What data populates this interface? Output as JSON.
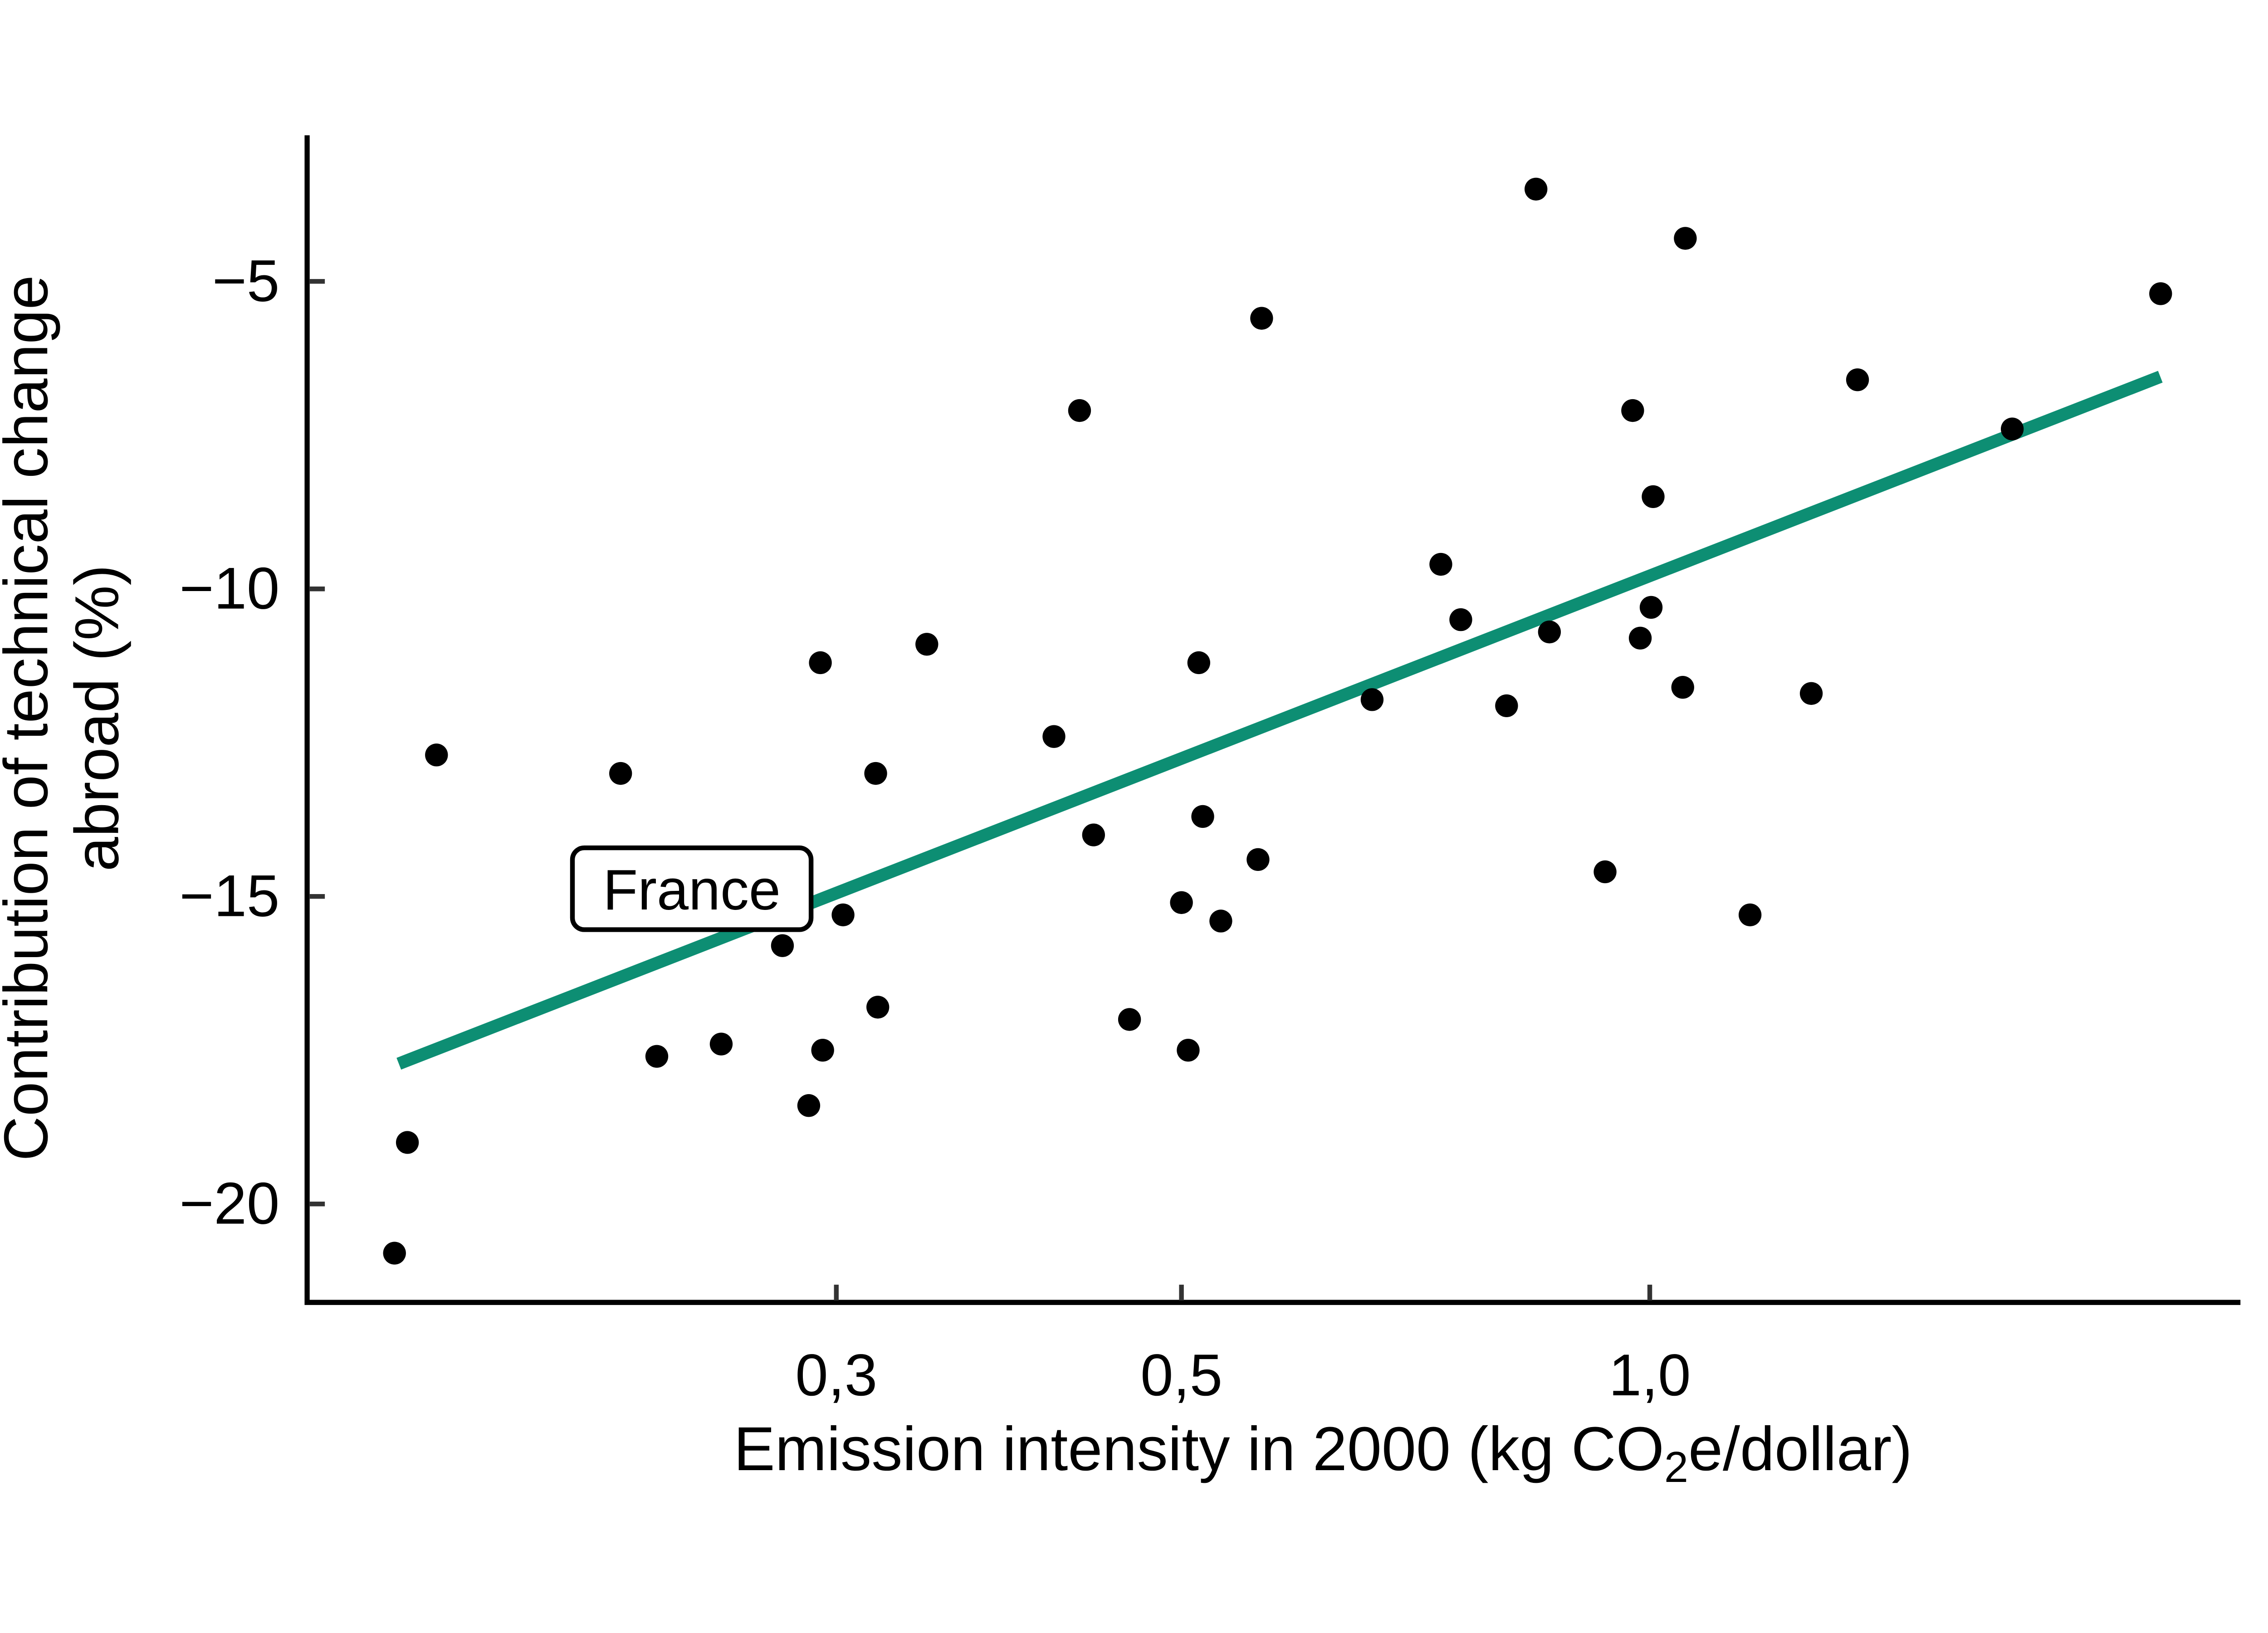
{
  "chart_data": {
    "type": "scatter",
    "title": "",
    "xlabel_prefix": "Emission intensity in 2000 (kg CO",
    "xlabel_subscript": "2",
    "xlabel_suffix": "e/dollar)",
    "ylabel_line1": "Contribution of technical change",
    "ylabel_line2": "abroad (%)",
    "x_scale": "log",
    "y_scale": "linear",
    "x_axis_range": [
      0.137,
      2.4
    ],
    "y_axis_range": [
      -21.6,
      -2.6
    ],
    "grid": false,
    "legend": "none",
    "x_ticks": [
      {
        "value": 0.3,
        "label": "0,3"
      },
      {
        "value": 0.5,
        "label": "0,5"
      },
      {
        "value": 1.0,
        "label": "1,0"
      }
    ],
    "y_ticks": [
      {
        "value": -5,
        "label": "−5"
      },
      {
        "value": -10,
        "label": "−10"
      },
      {
        "value": -15,
        "label": "−15"
      },
      {
        "value": -20,
        "label": "−20"
      }
    ],
    "points": [
      [
        0.845,
        -3.5
      ],
      [
        1.054,
        -4.3
      ],
      [
        2.13,
        -5.2
      ],
      [
        0.563,
        -5.6
      ],
      [
        1.36,
        -6.6
      ],
      [
        0.43,
        -7.1
      ],
      [
        0.975,
        -7.1
      ],
      [
        1.71,
        -7.4
      ],
      [
        1.005,
        -8.5
      ],
      [
        0.734,
        -9.6
      ],
      [
        0.756,
        -10.5
      ],
      [
        1.002,
        -10.3
      ],
      [
        0.862,
        -10.7
      ],
      [
        0.986,
        -10.8
      ],
      [
        0.513,
        -11.2
      ],
      [
        0.293,
        -11.2
      ],
      [
        0.343,
        -10.9
      ],
      [
        1.05,
        -11.6
      ],
      [
        0.663,
        -11.8
      ],
      [
        0.809,
        -11.9
      ],
      [
        1.27,
        -11.7
      ],
      [
        0.166,
        -12.7
      ],
      [
        0.218,
        -13.0
      ],
      [
        0.414,
        -12.4
      ],
      [
        0.318,
        -13.0
      ],
      [
        0.516,
        -13.7
      ],
      [
        0.439,
        -14.0
      ],
      [
        0.56,
        -14.4
      ],
      [
        0.936,
        -14.6
      ],
      [
        0.5,
        -15.1
      ],
      [
        1.16,
        -15.3
      ],
      [
        0.53,
        -15.4
      ],
      [
        0.303,
        -15.3
      ],
      [
        0.277,
        -15.8
      ],
      [
        0.319,
        -16.8
      ],
      [
        0.463,
        -17.0
      ],
      [
        0.505,
        -17.5
      ],
      [
        0.23,
        -17.6
      ],
      [
        0.253,
        -17.4
      ],
      [
        0.294,
        -17.5
      ],
      [
        0.288,
        -18.4
      ],
      [
        0.159,
        -19.0
      ],
      [
        0.156,
        -20.8
      ]
    ],
    "trend_line": {
      "x1": 0.157,
      "y1": -17.72,
      "x2": 2.129,
      "y2": -6.55
    },
    "annotation": {
      "label": "France",
      "x_left": 0.203,
      "x_right": 0.289,
      "y_top": -14.21,
      "y_bottom": -15.54
    }
  },
  "colors": {
    "trend": "#0d8e73",
    "point": "#000000",
    "axis": "#000000",
    "tick": "#333333",
    "annotation_bg": "#ffffff",
    "annotation_border": "#000000"
  }
}
